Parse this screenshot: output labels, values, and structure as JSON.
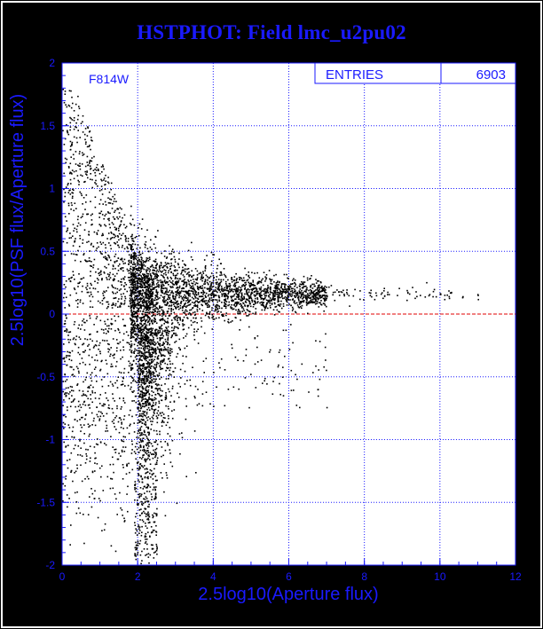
{
  "title": "HSTPHOT: Field lmc_u2pu02",
  "colors": {
    "frame": "#ffffff",
    "plot_background": "#ffffff",
    "axes_text": "#1a1aff",
    "grid": "#1a1aff",
    "points": "#000000",
    "reference_line": "#e00000"
  },
  "chart_data": {
    "type": "scatter",
    "title": "HSTPHOT: Field lmc_u2pu02",
    "xlabel": "2.5log10(Aperture flux)",
    "ylabel": "2.5log10(PSF flux/Aperture flux)",
    "xlim": [
      0,
      12
    ],
    "ylim": [
      -2,
      2
    ],
    "x_ticks": [
      "0",
      "2",
      "4",
      "6",
      "8",
      "10",
      "12"
    ],
    "y_ticks": [
      "2",
      "1.5",
      "1",
      "0.5",
      "0",
      "-0.5",
      "-1",
      "-1.5",
      "-2"
    ],
    "grid": true,
    "reference_line_y": 0,
    "series": [
      {
        "filter_label": "F814W",
        "n_points": 6903,
        "description_points": [
          [
            0.3,
            1.95
          ],
          [
            0.35,
            1.8
          ],
          [
            0.5,
            1.7
          ],
          [
            0.6,
            1.6
          ],
          [
            0.7,
            1.5
          ],
          [
            0.8,
            1.4
          ],
          [
            0.9,
            1.3
          ],
          [
            1.0,
            1.2
          ],
          [
            1.2,
            1.0
          ],
          [
            1.4,
            0.8
          ],
          [
            1.7,
            0.6
          ],
          [
            2.0,
            0.4
          ],
          [
            2.5,
            0.25
          ],
          [
            3.0,
            0.18
          ],
          [
            4.0,
            0.14
          ],
          [
            5.0,
            0.15
          ],
          [
            6.0,
            0.17
          ],
          [
            7.0,
            0.18
          ],
          [
            8.0,
            0.18
          ],
          [
            9.0,
            0.19
          ],
          [
            10.0,
            0.17
          ],
          [
            11.0,
            0.17
          ],
          [
            0.5,
            -1.0
          ],
          [
            1.0,
            -0.8
          ],
          [
            1.5,
            -0.6
          ],
          [
            2.0,
            -0.9
          ],
          [
            2.2,
            -1.4
          ],
          [
            2.5,
            -0.7
          ],
          [
            3.0,
            -0.4
          ],
          [
            4.0,
            -0.1
          ],
          [
            5.0,
            -0.3
          ],
          [
            6.5,
            -0.1
          ],
          [
            2.0,
            -1.9
          ],
          [
            1.5,
            -1.7
          ]
        ]
      }
    ],
    "stats_box": {
      "label": "ENTRIES",
      "value": "6903"
    }
  }
}
